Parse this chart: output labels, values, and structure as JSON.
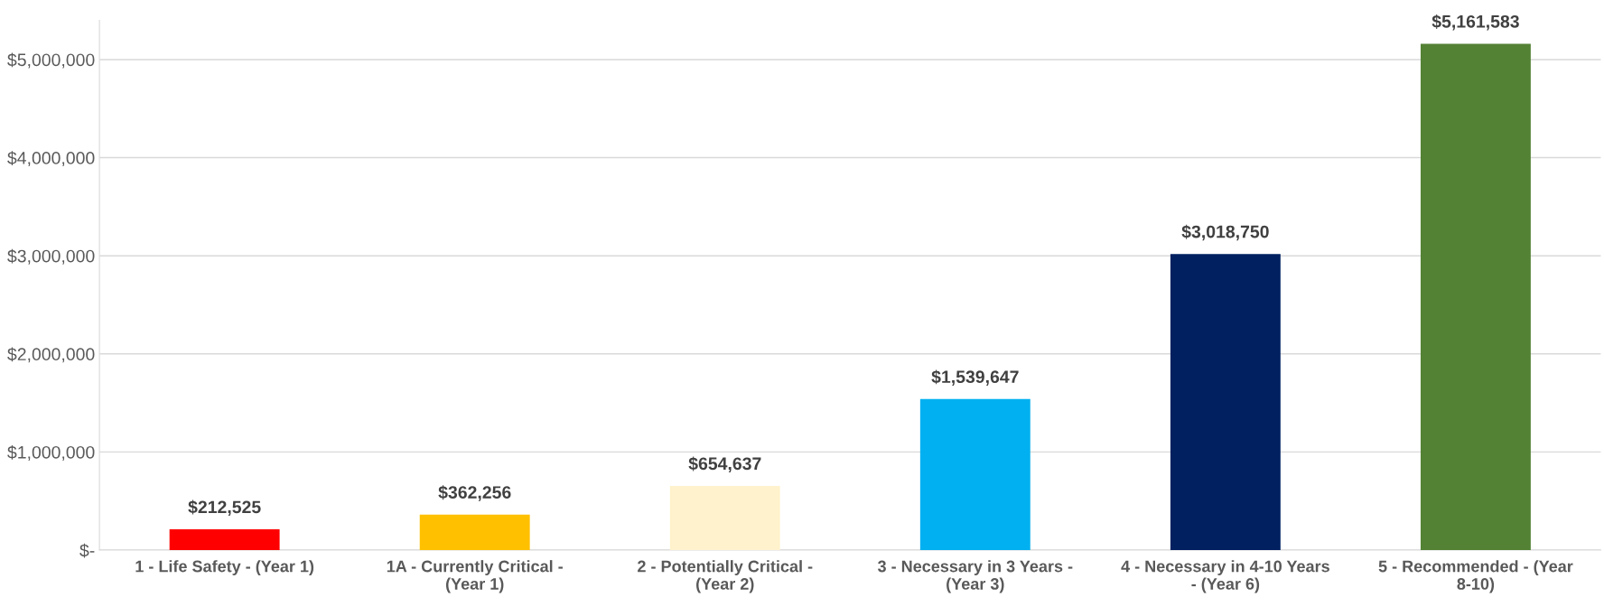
{
  "chart_data": {
    "type": "bar",
    "categories": [
      "1 - Life Safety - (Year 1)",
      "1A - Currently Critical -\n(Year 1)",
      "2 - Potentially Critical -\n(Year 2)",
      "3 - Necessary in 3 Years -\n(Year 3)",
      "4 - Necessary in 4-10 Years\n- (Year 6)",
      "5 - Recommended - (Year\n8-10)"
    ],
    "values": [
      212525,
      362256,
      654637,
      1539647,
      3018750,
      5161583
    ],
    "colors": [
      "#ff0000",
      "#ffc000",
      "#fff2cc",
      "#00b0f0",
      "#002060",
      "#548235"
    ],
    "value_labels": [
      "$212,525",
      "$362,256",
      "$654,637",
      "$1,539,647",
      "$3,018,750",
      "$5,161,583"
    ],
    "ylim": [
      0,
      5400000
    ],
    "yticks": [
      {
        "value": 0,
        "label": "$-"
      },
      {
        "value": 1000000,
        "label": "$1,000,000"
      },
      {
        "value": 2000000,
        "label": "$2,000,000"
      },
      {
        "value": 3000000,
        "label": "$3,000,000"
      },
      {
        "value": 4000000,
        "label": "$4,000,000"
      },
      {
        "value": 5000000,
        "label": "$5,000,000"
      }
    ],
    "grid": "y",
    "legend": false
  }
}
